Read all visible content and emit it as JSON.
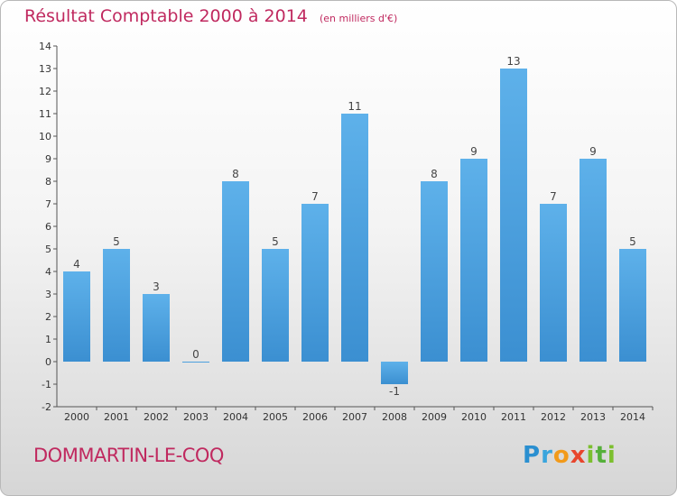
{
  "chart_data": {
    "type": "bar",
    "title": "Résultat Comptable 2000 à 2014",
    "subtitle": "(en milliers d'€)",
    "categories": [
      "2000",
      "2001",
      "2002",
      "2003",
      "2004",
      "2005",
      "2006",
      "2007",
      "2008",
      "2009",
      "2010",
      "2011",
      "2012",
      "2013",
      "2014"
    ],
    "values": [
      4,
      5,
      3,
      0,
      8,
      5,
      7,
      11,
      -1,
      8,
      9,
      13,
      7,
      9,
      5
    ],
    "ylim": [
      -2,
      14
    ],
    "yticks": [
      -2,
      -1,
      0,
      1,
      2,
      3,
      4,
      5,
      6,
      7,
      8,
      9,
      10,
      11,
      12,
      13,
      14
    ],
    "grid": false,
    "bar_color": "#3b8fd1",
    "label_color": "#444444"
  },
  "footer": {
    "commune": "DOMMARTIN-LE-COQ",
    "brand_letters": [
      "P",
      "r",
      "o",
      "x",
      "i",
      "t",
      "i"
    ]
  },
  "colors": {
    "title": "#c0295f",
    "axis": "#555555"
  }
}
